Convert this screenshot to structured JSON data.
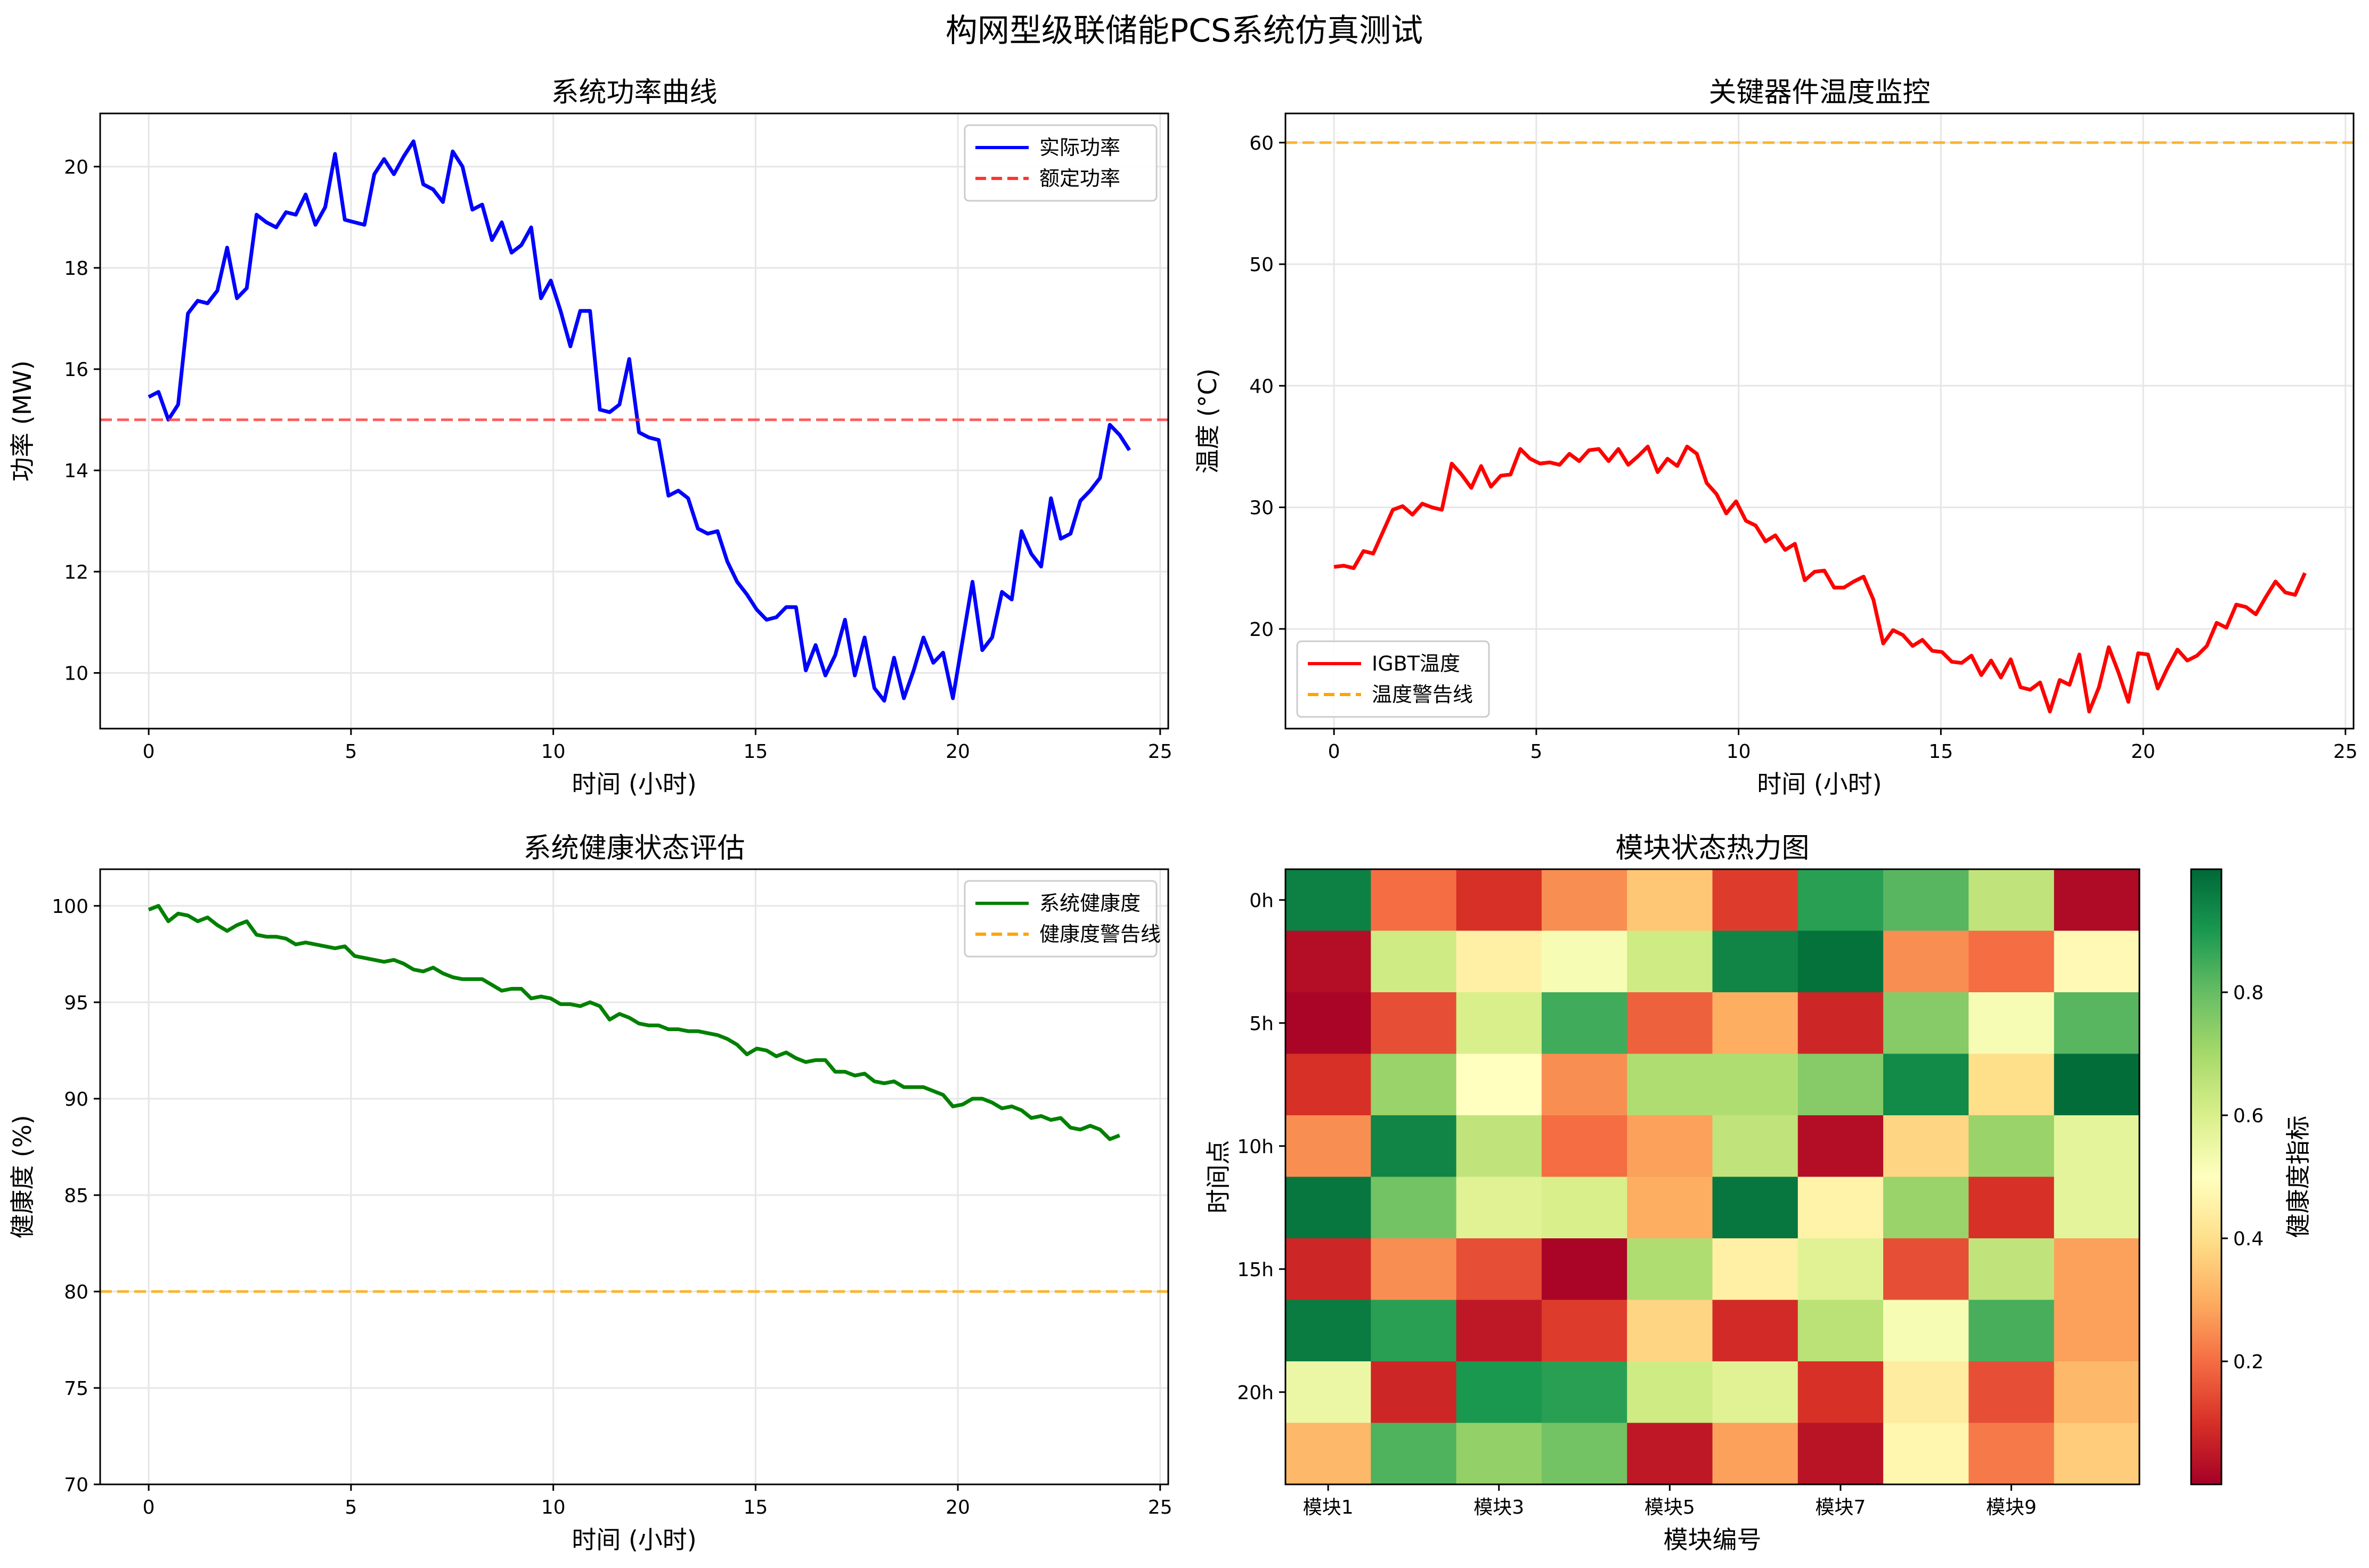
{
  "figure_title": "构网型级联储能PCS系统仿真测试",
  "colors": {
    "power_line": "#0000ff",
    "rated_line": "#ff3333",
    "temp_line": "#ff0000",
    "warn_line": "#ffa500",
    "health_line": "#008000",
    "grid": "#e6e6e6"
  },
  "chart_data": [
    {
      "id": "power",
      "type": "line",
      "title": "系统功率曲线",
      "xlabel": "时间 (小时)",
      "ylabel": "功率 (MW)",
      "xlim": [
        -1.2,
        25.2
      ],
      "ylim": [
        8.9,
        21.05
      ],
      "xticks": [
        0,
        5,
        10,
        15,
        20,
        25
      ],
      "yticks": [
        10,
        12,
        14,
        16,
        18,
        20
      ],
      "grid": true,
      "legend": "top-right",
      "x_step": 0.2424,
      "series": [
        {
          "name": "实际功率",
          "color": "#0000ff",
          "style": "solid",
          "values": [
            15.45,
            15.55,
            15.0,
            15.3,
            17.1,
            17.35,
            17.3,
            17.55,
            18.4,
            17.4,
            17.6,
            19.05,
            18.9,
            18.8,
            19.1,
            19.05,
            19.45,
            18.85,
            19.2,
            20.25,
            18.95,
            18.9,
            18.85,
            19.85,
            20.15,
            19.85,
            20.2,
            20.5,
            19.65,
            19.55,
            19.3,
            20.3,
            20.0,
            19.15,
            19.25,
            18.55,
            18.9,
            18.3,
            18.45,
            18.8,
            17.4,
            17.75,
            17.15,
            16.45,
            17.15,
            17.15,
            15.2,
            15.15,
            15.3,
            16.2,
            14.75,
            14.65,
            14.6,
            13.5,
            13.6,
            13.45,
            12.85,
            12.75,
            12.8,
            12.2,
            11.8,
            11.55,
            11.25,
            11.05,
            11.1,
            11.3,
            11.3,
            10.05,
            10.55,
            9.95,
            10.35,
            11.05,
            9.95,
            10.7,
            9.7,
            9.45,
            10.3,
            9.5,
            10.05,
            10.7,
            10.2,
            10.4,
            9.5,
            10.65,
            11.8,
            10.45,
            10.7,
            11.6,
            11.45,
            12.8,
            12.35,
            12.1,
            13.45,
            12.65,
            12.75,
            13.4,
            13.6,
            13.85,
            14.9,
            14.7,
            14.4
          ]
        },
        {
          "name": "额定功率",
          "color": "#ff3333",
          "style": "dashed",
          "constant": 15,
          "values": [
            15
          ]
        }
      ]
    },
    {
      "id": "temp",
      "type": "line",
      "title": "关键器件温度监控",
      "xlabel": "时间 (小时)",
      "ylabel": "温度 (°C)",
      "xlim": [
        -1.2,
        25.2
      ],
      "ylim": [
        11.8,
        62.4
      ],
      "xticks": [
        0,
        5,
        10,
        15,
        20,
        25
      ],
      "yticks": [
        20,
        30,
        40,
        50,
        60
      ],
      "grid": true,
      "legend": "bottom-left",
      "x_step": 0.2424,
      "series": [
        {
          "name": "IGBT温度",
          "color": "#ff0000",
          "style": "solid",
          "values": [
            25.1,
            25.2,
            25.0,
            26.4,
            26.2,
            28.0,
            29.8,
            30.1,
            29.4,
            30.3,
            30.0,
            29.8,
            33.6,
            32.7,
            31.6,
            33.4,
            31.7,
            32.6,
            32.7,
            34.8,
            34.0,
            33.6,
            33.7,
            33.5,
            34.4,
            33.8,
            34.7,
            34.8,
            33.8,
            34.8,
            33.5,
            34.2,
            35.0,
            32.9,
            34.0,
            33.4,
            35.0,
            34.4,
            32.0,
            31.1,
            29.5,
            30.5,
            28.9,
            28.5,
            27.2,
            27.7,
            26.5,
            27.0,
            24.0,
            24.7,
            24.8,
            23.4,
            23.4,
            23.9,
            24.3,
            22.4,
            18.8,
            19.9,
            19.5,
            18.6,
            19.1,
            18.2,
            18.1,
            17.3,
            17.2,
            17.8,
            16.2,
            17.4,
            16.0,
            17.5,
            15.2,
            15.0,
            15.6,
            13.2,
            15.8,
            15.4,
            17.9,
            13.2,
            15.2,
            18.5,
            16.4,
            14.0,
            18.0,
            17.9,
            15.1,
            16.8,
            18.3,
            17.4,
            17.8,
            18.6,
            20.5,
            20.1,
            22.0,
            21.8,
            21.2,
            22.6,
            23.9,
            23.0,
            22.8,
            24.6
          ]
        },
        {
          "name": "温度警告线",
          "color": "#ffa500",
          "style": "dashed",
          "constant": 60,
          "values": [
            60
          ]
        }
      ]
    },
    {
      "id": "health",
      "type": "line",
      "title": "系统健康状态评估",
      "xlabel": "时间 (小时)",
      "ylabel": "健康度 (%)",
      "xlim": [
        -1.2,
        25.2
      ],
      "ylim": [
        70,
        101.9
      ],
      "xticks": [
        0,
        5,
        10,
        15,
        20,
        25
      ],
      "yticks": [
        70,
        75,
        80,
        85,
        90,
        95,
        100
      ],
      "grid": true,
      "legend": "top-right",
      "x_step": 0.2424,
      "series": [
        {
          "name": "系统健康度",
          "color": "#008000",
          "style": "solid",
          "values": [
            99.8,
            100.0,
            99.2,
            99.6,
            99.5,
            99.2,
            99.4,
            99.0,
            98.7,
            99.0,
            99.2,
            98.5,
            98.4,
            98.4,
            98.3,
            98.0,
            98.1,
            98.0,
            97.9,
            97.8,
            97.9,
            97.4,
            97.3,
            97.2,
            97.1,
            97.2,
            97.0,
            96.7,
            96.6,
            96.8,
            96.5,
            96.3,
            96.2,
            96.2,
            96.2,
            95.9,
            95.6,
            95.7,
            95.7,
            95.2,
            95.3,
            95.2,
            94.9,
            94.9,
            94.8,
            95.0,
            94.8,
            94.1,
            94.4,
            94.2,
            93.9,
            93.8,
            93.8,
            93.6,
            93.6,
            93.5,
            93.5,
            93.4,
            93.3,
            93.1,
            92.8,
            92.3,
            92.6,
            92.5,
            92.2,
            92.4,
            92.1,
            91.9,
            92.0,
            92.0,
            91.4,
            91.4,
            91.2,
            91.3,
            90.9,
            90.8,
            90.9,
            90.6,
            90.6,
            90.6,
            90.4,
            90.2,
            89.6,
            89.7,
            90.0,
            90.0,
            89.8,
            89.5,
            89.6,
            89.4,
            89.0,
            89.1,
            88.9,
            89.0,
            88.5,
            88.4,
            88.6,
            88.4,
            87.9,
            88.1
          ]
        },
        {
          "name": "健康度警告线",
          "color": "#ffa500",
          "style": "dashed",
          "constant": 80,
          "values": [
            80
          ]
        }
      ]
    },
    {
      "id": "heatmap",
      "type": "heatmap",
      "title": "模块状态热力图",
      "xlabel": "模块编号",
      "ylabel": "时间点",
      "colorbar_label": "健康度指标",
      "colorbar_range": [
        0.0,
        1.0
      ],
      "colorbar_ticks": [
        0.2,
        0.4,
        0.6,
        0.8
      ],
      "colormap": "RdYlGn",
      "x_tick_labels": [
        "模块1",
        "模块3",
        "模块5",
        "模块7",
        "模块9"
      ],
      "x_tick_indices": [
        0,
        2,
        4,
        6,
        8
      ],
      "y_tick_labels": [
        "0h",
        "5h",
        "10h",
        "15h",
        "20h"
      ],
      "y_tick_indices": [
        0,
        2,
        4,
        6,
        8
      ],
      "values": [
        [
          0.95,
          0.2,
          0.1,
          0.25,
          0.35,
          0.12,
          0.88,
          0.82,
          0.65,
          0.02
        ],
        [
          0.03,
          0.62,
          0.45,
          0.52,
          0.62,
          0.94,
          0.98,
          0.25,
          0.2,
          0.48
        ],
        [
          0.01,
          0.15,
          0.6,
          0.85,
          0.18,
          0.3,
          0.08,
          0.75,
          0.52,
          0.82
        ],
        [
          0.1,
          0.72,
          0.5,
          0.25,
          0.68,
          0.68,
          0.75,
          0.93,
          0.4,
          0.99
        ],
        [
          0.25,
          0.94,
          0.65,
          0.2,
          0.28,
          0.65,
          0.03,
          0.38,
          0.72,
          0.57
        ],
        [
          0.97,
          0.78,
          0.58,
          0.6,
          0.3,
          0.97,
          0.46,
          0.72,
          0.1,
          0.57
        ],
        [
          0.08,
          0.25,
          0.15,
          0.01,
          0.68,
          0.45,
          0.58,
          0.15,
          0.65,
          0.28
        ],
        [
          0.96,
          0.88,
          0.05,
          0.12,
          0.38,
          0.09,
          0.66,
          0.52,
          0.84,
          0.28
        ],
        [
          0.55,
          0.08,
          0.9,
          0.88,
          0.62,
          0.58,
          0.1,
          0.44,
          0.15,
          0.32
        ],
        [
          0.32,
          0.83,
          0.73,
          0.78,
          0.05,
          0.28,
          0.04,
          0.47,
          0.22,
          0.36
        ]
      ]
    }
  ]
}
